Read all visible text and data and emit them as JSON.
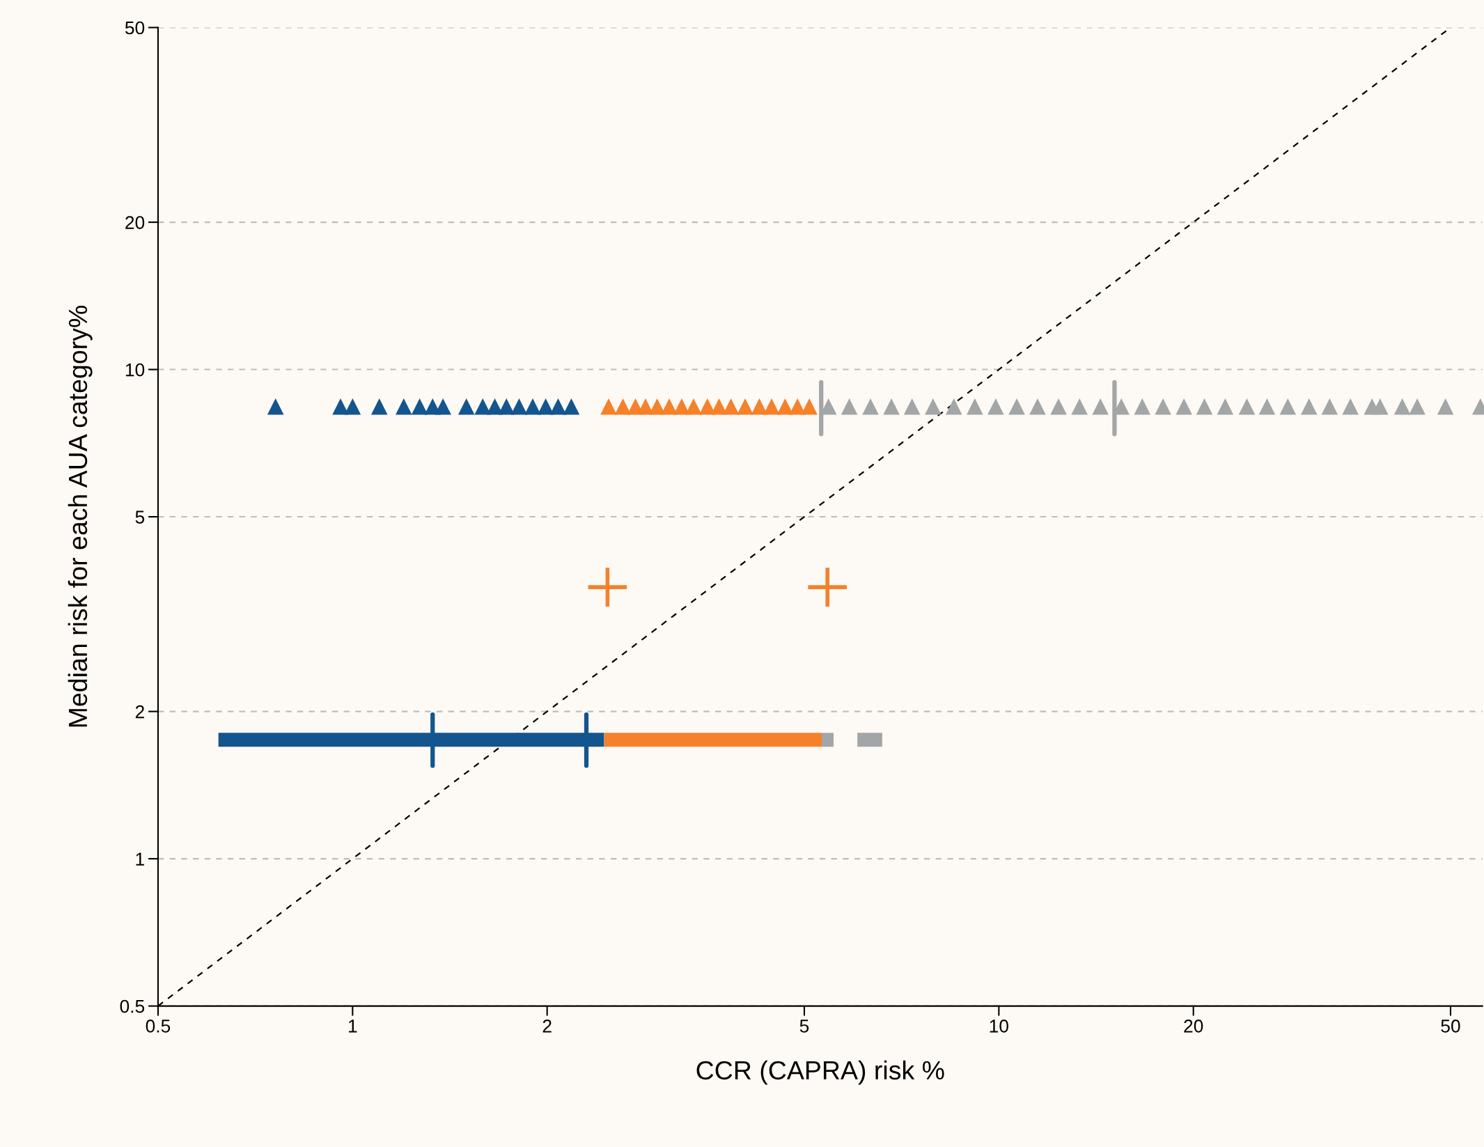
{
  "chart_data": {
    "type": "scatter",
    "xlabel": "CCR (CAPRA) risk %",
    "ylabel": "Median risk for each AUA category%",
    "log": "xy",
    "xlim": [
      0.5,
      56
    ],
    "ylim": [
      0.5,
      50
    ],
    "xticks": [
      0.5,
      1,
      2,
      5,
      10,
      20,
      50
    ],
    "yticks": [
      0.5,
      1,
      2,
      5,
      10,
      20,
      50
    ],
    "grid": "y",
    "series": [
      {
        "type": "line",
        "line_style": "dashed",
        "marker": "none",
        "color": "#000000",
        "x": [
          0.5,
          50
        ],
        "values": [
          0.5,
          50
        ]
      },
      {
        "type": "line",
        "line_style": "solid",
        "marker": "none",
        "color": "#13558f",
        "x": [
          0.62,
          2.45
        ],
        "values": [
          1.75,
          1.75
        ]
      },
      {
        "type": "line",
        "line_style": "solid",
        "marker": "none",
        "color": "#f5812a",
        "x": [
          2.45,
          5.32
        ],
        "values": [
          1.75,
          1.75
        ]
      },
      {
        "type": "line",
        "line_style": "solid",
        "marker": "none",
        "color": "#a3a6a7",
        "x": [
          5.32,
          5.55
        ],
        "values": [
          1.75,
          1.75
        ]
      },
      {
        "type": "line",
        "line_style": "solid",
        "marker": "none",
        "color": "#a3a6a7",
        "x": [
          6.04,
          6.6
        ],
        "values": [
          1.75,
          1.75
        ]
      },
      {
        "marker": "triangle",
        "color": "#13558f",
        "x": [
          0.76,
          0.958,
          1.0,
          1.1,
          1.2,
          1.27,
          1.33,
          1.38,
          1.5,
          1.59,
          1.66,
          1.73,
          1.81,
          1.9,
          1.99,
          2.08,
          2.18
        ],
        "values": [
          8.4,
          8.4,
          8.4,
          8.4,
          8.4,
          8.4,
          8.4,
          8.4,
          8.4,
          8.4,
          8.4,
          8.4,
          8.4,
          8.4,
          8.4,
          8.4,
          8.4
        ]
      },
      {
        "marker": "triangle",
        "color": "#f5812a",
        "x": [
          2.49,
          2.62,
          2.74,
          2.84,
          2.96,
          3.09,
          3.23,
          3.37,
          3.54,
          3.69,
          3.85,
          4.05,
          4.26,
          4.45,
          4.67,
          4.88,
          5.09
        ],
        "values": [
          8.4,
          8.4,
          8.4,
          8.4,
          8.4,
          8.4,
          8.4,
          8.4,
          8.4,
          8.4,
          8.4,
          8.4,
          8.4,
          8.4,
          8.4,
          8.4,
          8.4
        ]
      },
      {
        "marker": "triangle",
        "color": "#a3a6a7",
        "x": [
          5.45,
          5.87,
          6.33,
          6.82,
          7.34,
          7.91,
          8.52,
          9.18,
          9.89,
          10.66,
          11.48,
          12.37,
          13.33,
          14.36,
          15.47,
          16.67,
          17.95,
          19.34,
          20.8,
          22.4,
          24.2,
          26.0,
          28.0,
          30.2,
          32.5,
          35.0,
          37.8,
          38.9,
          42.1,
          44.4,
          49.1,
          55.6
        ],
        "values": [
          8.4,
          8.4,
          8.4,
          8.4,
          8.4,
          8.4,
          8.4,
          8.4,
          8.4,
          8.4,
          8.4,
          8.4,
          8.4,
          8.4,
          8.4,
          8.4,
          8.4,
          8.4,
          8.4,
          8.4,
          8.4,
          8.4,
          8.4,
          8.4,
          8.4,
          8.4,
          8.4,
          8.4,
          8.4,
          8.4,
          8.4,
          8.4
        ]
      },
      {
        "marker": "cross",
        "color": "#f5812a",
        "x": [
          2.48,
          5.43
        ],
        "values": [
          3.59,
          3.59
        ]
      },
      {
        "type": "line",
        "line_style": "solid",
        "marker": "none",
        "color": "#13558f",
        "x": [
          1.33,
          1.33
        ],
        "values": [
          1.55,
          1.97
        ]
      },
      {
        "type": "line",
        "line_style": "solid",
        "marker": "none",
        "color": "#13558f",
        "x": [
          2.3,
          2.3
        ],
        "values": [
          1.55,
          1.97
        ]
      },
      {
        "type": "line",
        "line_style": "solid",
        "marker": "none",
        "color": "#a3a6a7",
        "x": [
          5.31,
          5.31
        ],
        "values": [
          7.38,
          9.42
        ]
      },
      {
        "type": "line",
        "line_style": "solid",
        "marker": "none",
        "color": "#a3a6a7",
        "x": [
          15.1,
          15.1
        ],
        "values": [
          7.38,
          9.42
        ]
      }
    ]
  }
}
